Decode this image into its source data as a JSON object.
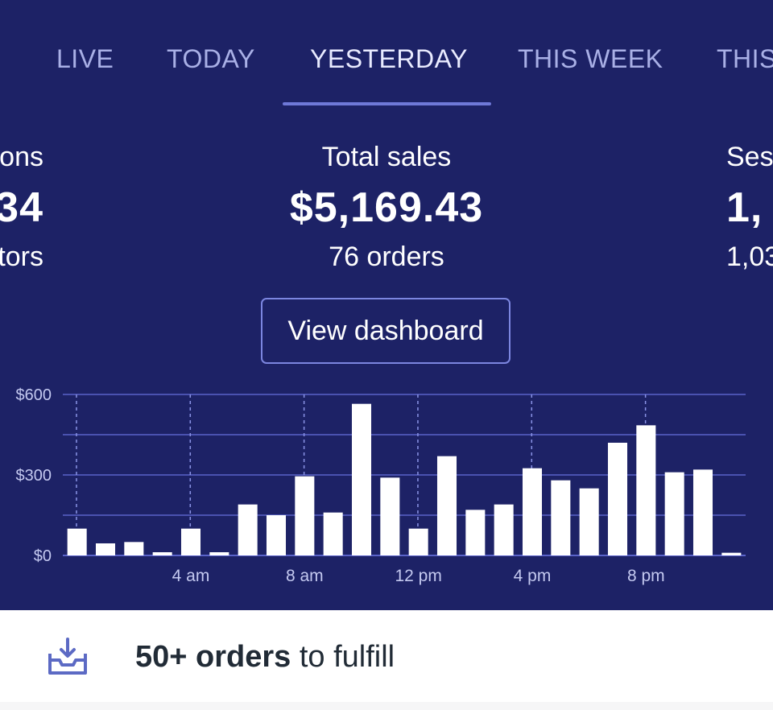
{
  "tabs": [
    {
      "label": "LIVE",
      "active": false
    },
    {
      "label": "TODAY",
      "active": false
    },
    {
      "label": "YESTERDAY",
      "active": true
    },
    {
      "label": "THIS WEEK",
      "active": false
    },
    {
      "label": "THIS",
      "active": false
    }
  ],
  "metrics": {
    "left": {
      "title": "ons",
      "value": "34",
      "sub": "tors"
    },
    "center": {
      "title": "Total sales",
      "value": "$5,169.43",
      "sub": "76 orders"
    },
    "right": {
      "title": "Ses",
      "value": "1,",
      "sub": "1,03"
    }
  },
  "view_dashboard_label": "View dashboard",
  "fulfill": {
    "bold": "50+ orders",
    "rest": " to fulfill"
  },
  "colors": {
    "panel": "#1d2266",
    "accent": "#6f79d8",
    "bar": "#ffffff",
    "gridline": "#5a63c9"
  },
  "chart_data": {
    "type": "bar",
    "y_tick_labels": [
      "$0",
      "$300",
      "$600"
    ],
    "x_tick_labels": [
      "4 am",
      "8 am",
      "12 pm",
      "4 pm",
      "8 pm"
    ],
    "ylim": [
      0,
      600
    ],
    "categories": [
      "12 am",
      "1 am",
      "2 am",
      "3 am",
      "4 am",
      "5 am",
      "6 am",
      "7 am",
      "8 am",
      "9 am",
      "10 am",
      "11 am",
      "12 pm",
      "1 pm",
      "2 pm",
      "3 pm",
      "4 pm",
      "5 pm",
      "6 pm",
      "7 pm",
      "8 pm",
      "9 pm",
      "10 pm",
      "11 pm"
    ],
    "values": [
      100,
      45,
      50,
      12,
      100,
      12,
      190,
      150,
      295,
      160,
      565,
      290,
      100,
      370,
      170,
      190,
      325,
      280,
      250,
      420,
      485,
      310,
      320,
      10
    ],
    "grid": true
  }
}
